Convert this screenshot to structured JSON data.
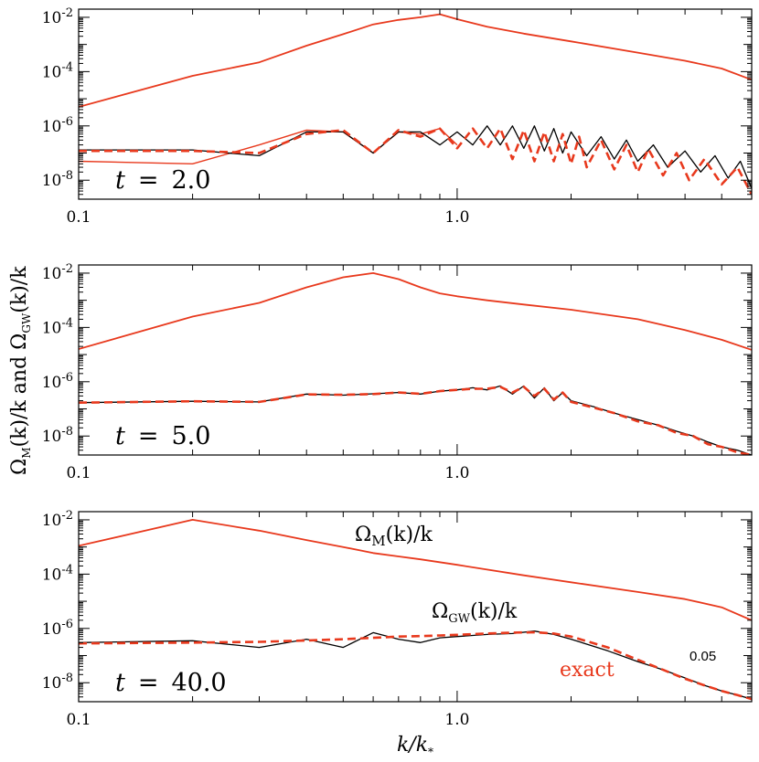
{
  "y_axis_label": "Ω_M(k)/k  and  Ω_GW(k)/k",
  "x_axis_label": "k/k_*",
  "colors": {
    "simulation": "#000000",
    "exact": "#e8391d",
    "frame": "#000000"
  },
  "chart_data": [
    {
      "type": "line",
      "panel_label": "t = 2.0",
      "xscale": "log",
      "yscale": "log",
      "xlim": [
        0.1,
        6.0
      ],
      "ylim": [
        2e-09,
        0.02
      ],
      "x_ticks": [
        "0.1",
        "1.0"
      ],
      "y_ticks": [
        "10^-8",
        "10^-6",
        "10^-4",
        "10^-2"
      ],
      "series": [
        {
          "role": "magnetic",
          "color": "#e8391d",
          "dash": "solid",
          "x": [
            0.1,
            0.2,
            0.3,
            0.4,
            0.5,
            0.6,
            0.7,
            0.8,
            0.9,
            1.0,
            1.2,
            1.5,
            2.0,
            3.0,
            4.0,
            5.0,
            6.0
          ],
          "y": [
            5e-06,
            7e-05,
            0.00022,
            0.0009,
            0.0024,
            0.0055,
            0.008,
            0.01,
            0.013,
            0.0085,
            0.0045,
            0.0025,
            0.0013,
            0.0005,
            0.00025,
            0.00013,
            5e-05
          ]
        },
        {
          "role": "gw-simulation",
          "color": "#000000",
          "dash": "solid",
          "x": [
            0.1,
            0.2,
            0.3,
            0.4,
            0.5,
            0.6,
            0.7,
            0.8,
            0.9,
            1.0,
            1.1,
            1.2,
            1.3,
            1.4,
            1.5,
            1.6,
            1.7,
            1.8,
            1.9,
            2.0,
            2.2,
            2.4,
            2.6,
            2.8,
            3.0,
            3.3,
            3.6,
            4.0,
            4.4,
            4.8,
            5.2,
            5.6,
            6.0
          ],
          "y": [
            1.3e-07,
            1.3e-07,
            8e-08,
            6e-07,
            6e-07,
            1e-07,
            6e-07,
            6e-07,
            2e-07,
            6e-07,
            2e-07,
            1e-06,
            2e-07,
            1e-06,
            1.5e-07,
            1e-06,
            1.2e-07,
            8e-07,
            1e-07,
            6e-07,
            8e-08,
            4e-07,
            6e-08,
            3e-07,
            5e-08,
            2e-07,
            3e-08,
            1.2e-07,
            2e-08,
            8e-08,
            1.2e-08,
            5e-08,
            5e-09
          ]
        },
        {
          "role": "gw-exact",
          "color": "#e8391d",
          "dash": "dashed",
          "x": [
            0.1,
            0.2,
            0.3,
            0.4,
            0.5,
            0.6,
            0.7,
            0.8,
            0.9,
            1.0,
            1.1,
            1.2,
            1.3,
            1.4,
            1.5,
            1.6,
            1.7,
            1.8,
            1.9,
            2.0,
            2.1,
            2.2,
            2.4,
            2.6,
            2.8,
            3.0,
            3.2,
            3.5,
            3.8,
            4.1,
            4.5,
            5.0,
            5.5,
            6.0
          ],
          "y": [
            1.2e-07,
            1.2e-07,
            1e-07,
            5e-07,
            7e-07,
            1e-07,
            7e-07,
            4e-07,
            8e-07,
            1.5e-07,
            8e-07,
            1.5e-07,
            8e-07,
            6e-08,
            7e-07,
            5e-08,
            6e-07,
            5e-08,
            5e-07,
            4e-08,
            4e-07,
            3e-08,
            3e-07,
            2.5e-08,
            2e-07,
            2e-08,
            1.4e-07,
            1.5e-08,
            1e-07,
            1e-08,
            6e-08,
            7e-09,
            3e-08,
            3e-09
          ]
        },
        {
          "role": "gw-exact-thin",
          "color": "#e8391d",
          "dash": "solid",
          "x": [
            0.1,
            0.2,
            0.3,
            0.4,
            0.5,
            0.6,
            0.7,
            0.8,
            0.9,
            1.0
          ],
          "y": [
            5e-08,
            4e-08,
            2e-07,
            7e-07,
            6e-07,
            1e-07,
            6e-07,
            5e-07,
            8e-07,
            2e-07
          ]
        }
      ]
    },
    {
      "type": "line",
      "panel_label": "t = 5.0",
      "xscale": "log",
      "yscale": "log",
      "xlim": [
        0.1,
        6.0
      ],
      "ylim": [
        2e-09,
        0.02
      ],
      "x_ticks": [
        "0.1",
        "1.0"
      ],
      "y_ticks": [
        "10^-8",
        "10^-6",
        "10^-4",
        "10^-2"
      ],
      "series": [
        {
          "role": "magnetic",
          "color": "#e8391d",
          "dash": "solid",
          "x": [
            0.1,
            0.2,
            0.3,
            0.4,
            0.5,
            0.6,
            0.7,
            0.8,
            0.9,
            1.0,
            1.2,
            1.5,
            2.0,
            3.0,
            4.0,
            5.0,
            6.0
          ],
          "y": [
            1.6e-05,
            0.00025,
            0.0008,
            0.003,
            0.007,
            0.01,
            0.006,
            0.003,
            0.0018,
            0.0014,
            0.001,
            0.0007,
            0.00045,
            0.0002,
            8e-05,
            3.5e-05,
            1.5e-05
          ]
        },
        {
          "role": "gw-simulation",
          "color": "#000000",
          "dash": "solid",
          "x": [
            0.1,
            0.2,
            0.3,
            0.4,
            0.5,
            0.6,
            0.7,
            0.8,
            0.9,
            1.0,
            1.1,
            1.2,
            1.3,
            1.4,
            1.5,
            1.6,
            1.7,
            1.8,
            1.9,
            2.0,
            2.3,
            2.6,
            3.0,
            3.4,
            3.8,
            4.2,
            4.6,
            5.0,
            5.5,
            6.0
          ],
          "y": [
            1.7e-07,
            1.9e-07,
            1.8e-07,
            3.5e-07,
            3.2e-07,
            3.6e-07,
            4e-07,
            3.5e-07,
            4.5e-07,
            5e-07,
            6e-07,
            5e-07,
            7e-07,
            3.5e-07,
            7e-07,
            2.5e-07,
            6e-07,
            2e-07,
            4e-07,
            2e-07,
            1.2e-07,
            7e-08,
            4e-08,
            2.5e-08,
            1.5e-08,
            1e-08,
            6e-09,
            4e-09,
            3e-09,
            2e-09
          ]
        },
        {
          "role": "gw-exact",
          "color": "#e8391d",
          "dash": "dashed",
          "x": [
            0.1,
            0.2,
            0.3,
            0.4,
            0.5,
            0.6,
            0.7,
            0.8,
            0.9,
            1.0,
            1.1,
            1.2,
            1.3,
            1.4,
            1.5,
            1.6,
            1.7,
            1.8,
            1.9,
            2.0,
            2.3,
            2.6,
            3.0,
            3.4,
            3.8,
            4.2,
            4.6,
            5.0,
            5.5,
            6.0
          ],
          "y": [
            1.7e-07,
            1.9e-07,
            1.8e-07,
            3.4e-07,
            3.3e-07,
            3.5e-07,
            4e-07,
            3.6e-07,
            4.5e-07,
            5e-07,
            5.5e-07,
            5.5e-07,
            6.5e-07,
            4e-07,
            6.5e-07,
            3e-07,
            5.5e-07,
            2.2e-07,
            4e-07,
            1.8e-07,
            1.1e-07,
            7e-08,
            3.5e-08,
            2.5e-08,
            1.3e-08,
            1e-08,
            5e-09,
            4e-09,
            2.5e-09,
            2e-09
          ]
        }
      ]
    },
    {
      "type": "line",
      "panel_label": "t = 40.0",
      "xscale": "log",
      "yscale": "log",
      "xlim": [
        0.1,
        6.0
      ],
      "ylim": [
        2e-09,
        0.02
      ],
      "x_ticks": [
        "0.1",
        "1.0"
      ],
      "y_ticks": [
        "10^-8",
        "10^-6",
        "10^-4",
        "10^-2"
      ],
      "annotations": {
        "magnetic": "Ω_M(k)/k",
        "gw": "Ω_GW(k)/k",
        "exact": "exact",
        "value": "0.05"
      },
      "series": [
        {
          "role": "magnetic",
          "color": "#e8391d",
          "dash": "solid",
          "x": [
            0.1,
            0.2,
            0.3,
            0.4,
            0.5,
            0.6,
            0.7,
            0.8,
            1.0,
            1.5,
            2.0,
            3.0,
            4.0,
            5.0,
            6.0
          ],
          "y": [
            0.0011,
            0.01,
            0.004,
            0.0018,
            0.001,
            0.0006,
            0.00045,
            0.00035,
            0.00022,
            9e-05,
            5e-05,
            2.2e-05,
            1.2e-05,
            6e-06,
            2e-06
          ]
        },
        {
          "role": "gw-simulation",
          "color": "#000000",
          "dash": "solid",
          "x": [
            0.1,
            0.2,
            0.3,
            0.4,
            0.5,
            0.6,
            0.7,
            0.8,
            0.9,
            1.0,
            1.2,
            1.4,
            1.6,
            1.8,
            2.0,
            2.5,
            3.0,
            3.5,
            4.0,
            4.5,
            5.0,
            5.5,
            6.0
          ],
          "y": [
            3e-07,
            3.5e-07,
            2e-07,
            4e-07,
            2e-07,
            7e-07,
            4e-07,
            3e-07,
            4.5e-07,
            5e-07,
            6e-07,
            6.5e-07,
            8e-07,
            6e-07,
            4e-07,
            1.5e-07,
            6e-08,
            3e-08,
            1.5e-08,
            8e-09,
            5e-09,
            3.5e-09,
            2.5e-09
          ]
        },
        {
          "role": "gw-exact",
          "color": "#e8391d",
          "dash": "dashed",
          "x": [
            0.1,
            0.2,
            0.3,
            0.4,
            0.5,
            0.6,
            0.7,
            0.8,
            0.9,
            1.0,
            1.2,
            1.4,
            1.6,
            1.8,
            2.0,
            2.5,
            3.0,
            3.5,
            4.0,
            4.5,
            5.0,
            5.5,
            6.0
          ],
          "y": [
            2.8e-07,
            3e-07,
            3.2e-07,
            3.6e-07,
            4e-07,
            4.5e-07,
            5e-07,
            5.2e-07,
            5.5e-07,
            5.8e-07,
            6.5e-07,
            7e-07,
            7.2e-07,
            6.5e-07,
            5e-07,
            2e-07,
            7e-08,
            3e-08,
            1.4e-08,
            8e-09,
            5e-09,
            3.5e-09,
            2.5e-09
          ]
        }
      ]
    }
  ]
}
